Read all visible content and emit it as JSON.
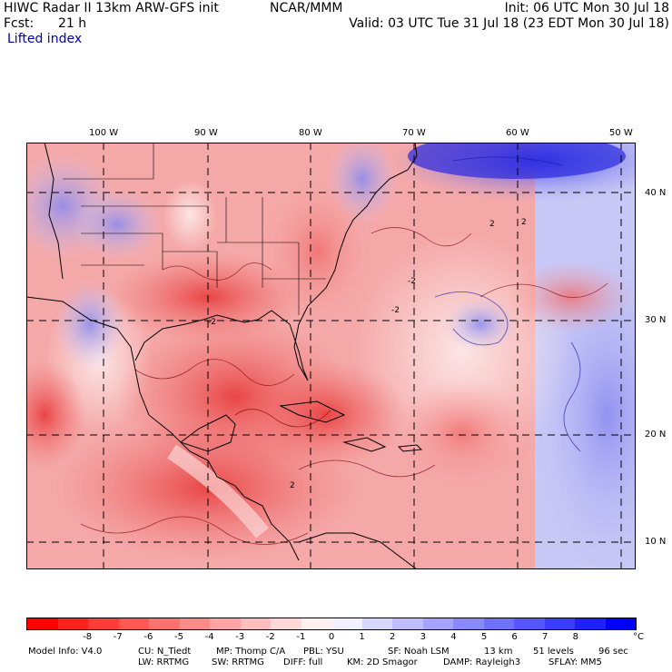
{
  "header": {
    "title": "HIWC Radar II 13km ARW-GFS init",
    "org": "NCAR/MMM",
    "init": "Init: 06 UTC Mon 30 Jul 18",
    "fcst_label": "Fcst:",
    "fcst_value": "21 h",
    "valid": "Valid: 03 UTC Tue 31 Jul 18 (23 EDT Mon 30 Jul 18)",
    "field": "Lifted index"
  },
  "map": {
    "lon_labels": [
      "100 W",
      "90 W",
      "80 W",
      "70 W",
      "60 W",
      "50 W"
    ],
    "lat_labels": [
      "40 N",
      "30 N",
      "20 N",
      "10 N"
    ],
    "contour_labels": [
      "-2",
      "2",
      "-2",
      "2",
      "-2",
      "2"
    ]
  },
  "colorbar": {
    "colors": [
      "#ff0000",
      "#ff2020",
      "#ff3c3c",
      "#ff5656",
      "#ff7070",
      "#ff8a8a",
      "#ffa4a4",
      "#ffbebe",
      "#ffd8d8",
      "#fff0f0",
      "#f0f0ff",
      "#d8d8ff",
      "#bebeff",
      "#a4a4ff",
      "#8a8aff",
      "#7070ff",
      "#5656ff",
      "#3c3cff",
      "#2020ff",
      "#0000ff"
    ],
    "labels": [
      "-8",
      "-7",
      "-6",
      "-5",
      "-4",
      "-3",
      "-2",
      "-1",
      "0",
      "1",
      "2",
      "3",
      "4",
      "5",
      "6",
      "7",
      "8"
    ],
    "unit": "°C"
  },
  "model_info": {
    "line1": [
      "Model Info: V4.0",
      "CU: N_Tiedt",
      "MP: Thomp C/A",
      "PBL: YSU",
      "SF: Noah LSM",
      "13 km",
      "51 levels",
      "96 sec"
    ],
    "line2": [
      "LW: RRTMG",
      "SW: RRTMG",
      "DIFF: full",
      "KM: 2D Smagor",
      "DAMP: Rayleigh3",
      "SFLAY: MM5"
    ]
  }
}
